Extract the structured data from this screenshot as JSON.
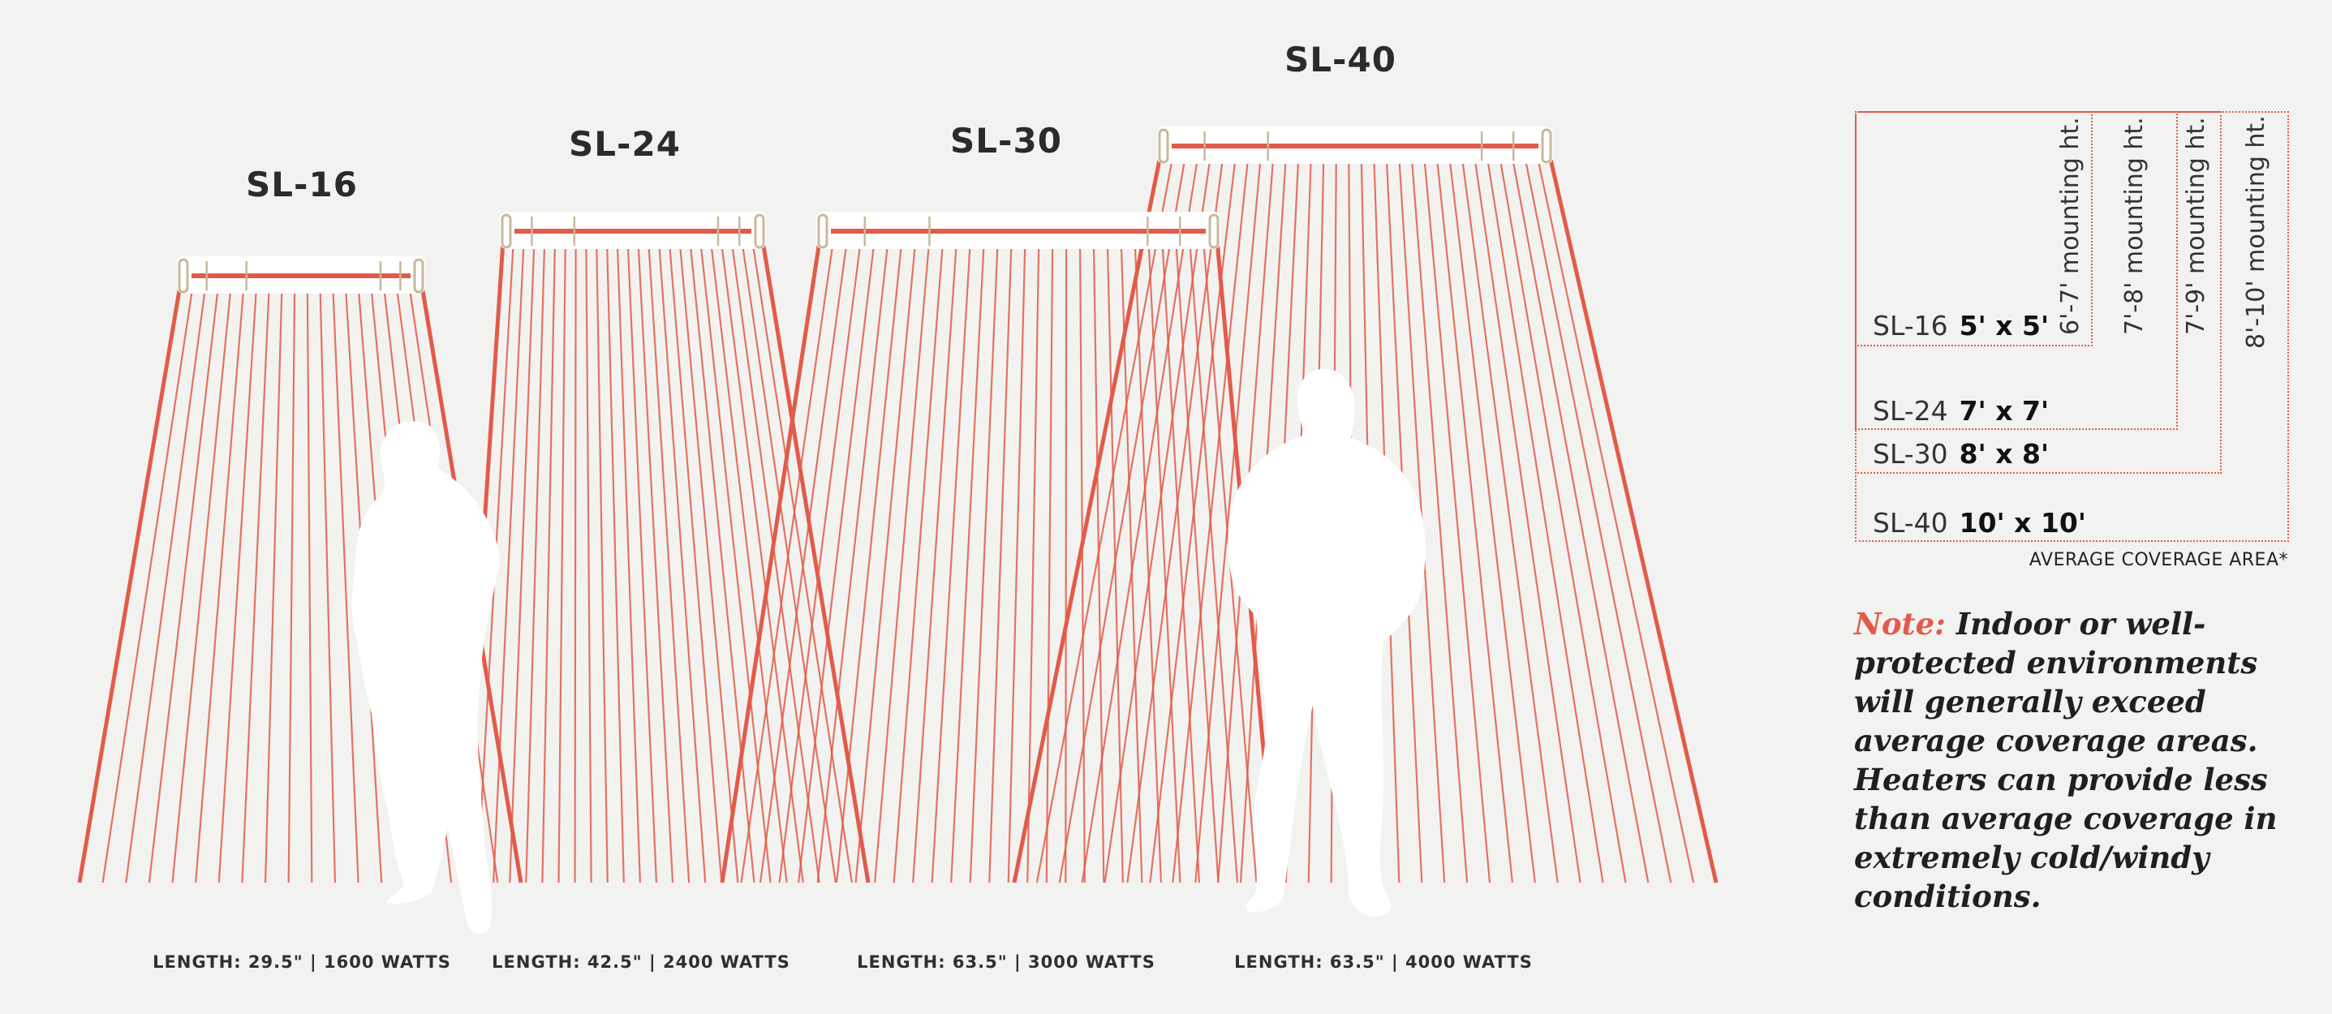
{
  "heaters": [
    {
      "model": "SL-16",
      "spec": "LENGTH: 29.5\" | 1600 WATTS"
    },
    {
      "model": "SL-24",
      "spec": "LENGTH: 42.5\" | 2400 WATTS"
    },
    {
      "model": "SL-30",
      "spec": "LENGTH: 63.5\" | 3000 WATTS"
    },
    {
      "model": "SL-40",
      "spec": "LENGTH: 63.5\" | 4000 WATTS"
    }
  ],
  "coverage": {
    "rows": [
      {
        "model": "SL-16",
        "area": "5' x 5'",
        "mounting": "6'-7' mounting ht."
      },
      {
        "model": "SL-24",
        "area": "7' x 7'",
        "mounting": "7'-8' mounting ht."
      },
      {
        "model": "SL-30",
        "area": "8' x 8'",
        "mounting": "7'-9' mounting ht."
      },
      {
        "model": "SL-40",
        "area": "10' x 10'",
        "mounting": "8'-10' mounting ht."
      }
    ],
    "caption": "AVERAGE COVERAGE AREA*"
  },
  "note": {
    "label": "Note:",
    "text": "Indoor or well-protected environments will generally exceed average coverage areas. Heaters can provide less than average coverage in extremely cold/windy conditions."
  },
  "colors": {
    "accent": "#e25b4a",
    "background": "#f2f3f0",
    "heater_housing": "#c8b89a"
  }
}
